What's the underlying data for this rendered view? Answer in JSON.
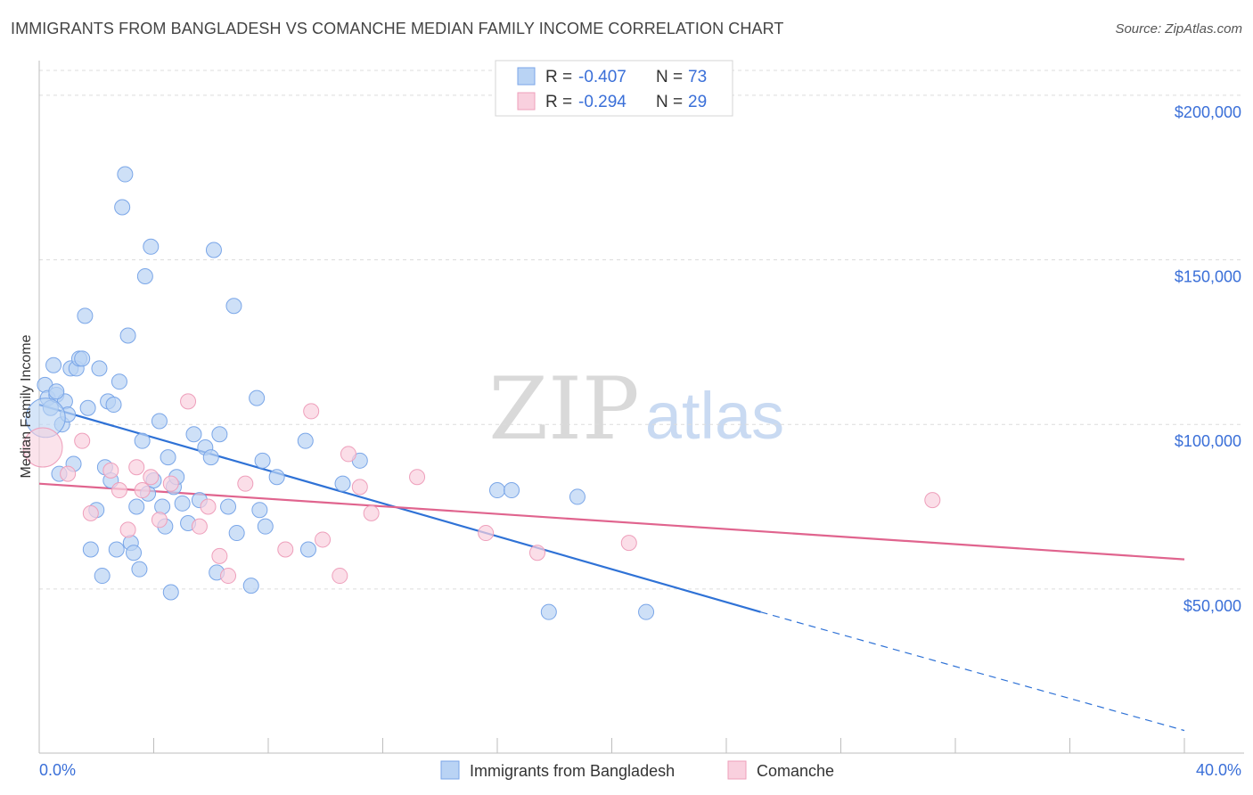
{
  "title": "IMMIGRANTS FROM BANGLADESH VS COMANCHE MEDIAN FAMILY INCOME CORRELATION CHART",
  "source": "Source: ZipAtlas.com",
  "watermark": {
    "zip": "ZIP",
    "atlas": "atlas"
  },
  "chart_data": {
    "type": "scatter",
    "ylabel": "Median Family Income",
    "xlim": [
      0,
      40
    ],
    "ylim": [
      5000,
      210000
    ],
    "x_tick_labels": [
      "0.0%",
      "40.0%"
    ],
    "y_ticks": [
      {
        "value": 50000,
        "label": "$50,000"
      },
      {
        "value": 100000,
        "label": "$100,000"
      },
      {
        "value": 150000,
        "label": "$150,000"
      },
      {
        "value": 200000,
        "label": "$200,000"
      }
    ],
    "grid": "horizontal-dashed",
    "legend": {
      "entries": [
        {
          "r_label": "R = ",
          "r_value": "-0.407",
          "n_label": "N = ",
          "n_value": "73"
        },
        {
          "r_label": "R = ",
          "r_value": "-0.294",
          "n_label": "N = ",
          "n_value": "29"
        }
      ]
    },
    "series": [
      {
        "name": "Immigrants from Bangladesh",
        "color": "#7aa6e8",
        "fill": "#b9d3f4",
        "line_color": "#2f72d6",
        "trend": {
          "x0": 0,
          "y0": 106000,
          "x1": 25.2,
          "y1": 43000,
          "dash_to_x": 40,
          "dash_to_y": 7000
        },
        "points": [
          [
            0.2,
            112000
          ],
          [
            0.3,
            108000
          ],
          [
            0.4,
            105000
          ],
          [
            0.5,
            118000
          ],
          [
            0.6,
            109000
          ],
          [
            0.7,
            85000
          ],
          [
            0.8,
            100000
          ],
          [
            0.9,
            107000
          ],
          [
            1.0,
            103000
          ],
          [
            1.1,
            117000
          ],
          [
            1.2,
            88000
          ],
          [
            1.3,
            117000
          ],
          [
            1.4,
            120000
          ],
          [
            1.5,
            120000
          ],
          [
            1.6,
            133000
          ],
          [
            1.7,
            105000
          ],
          [
            1.8,
            62000
          ],
          [
            2.0,
            74000
          ],
          [
            2.1,
            117000
          ],
          [
            2.2,
            54000
          ],
          [
            2.3,
            87000
          ],
          [
            2.4,
            107000
          ],
          [
            2.5,
            83000
          ],
          [
            2.6,
            106000
          ],
          [
            2.7,
            62000
          ],
          [
            2.8,
            113000
          ],
          [
            2.9,
            166000
          ],
          [
            3.0,
            176000
          ],
          [
            3.1,
            127000
          ],
          [
            3.2,
            64000
          ],
          [
            3.3,
            61000
          ],
          [
            3.4,
            75000
          ],
          [
            3.5,
            56000
          ],
          [
            3.6,
            95000
          ],
          [
            3.7,
            145000
          ],
          [
            3.8,
            79000
          ],
          [
            3.9,
            154000
          ],
          [
            4.0,
            83000
          ],
          [
            4.2,
            101000
          ],
          [
            4.3,
            75000
          ],
          [
            4.4,
            69000
          ],
          [
            4.5,
            90000
          ],
          [
            4.6,
            49000
          ],
          [
            4.7,
            81000
          ],
          [
            4.8,
            84000
          ],
          [
            5.0,
            76000
          ],
          [
            5.2,
            70000
          ],
          [
            5.4,
            97000
          ],
          [
            5.6,
            77000
          ],
          [
            5.8,
            93000
          ],
          [
            6.0,
            90000
          ],
          [
            6.1,
            153000
          ],
          [
            6.2,
            55000
          ],
          [
            6.3,
            97000
          ],
          [
            6.6,
            75000
          ],
          [
            6.8,
            136000
          ],
          [
            6.9,
            67000
          ],
          [
            7.4,
            51000
          ],
          [
            7.6,
            108000
          ],
          [
            7.7,
            74000
          ],
          [
            7.8,
            89000
          ],
          [
            7.9,
            69000
          ],
          [
            8.3,
            84000
          ],
          [
            9.3,
            95000
          ],
          [
            9.4,
            62000
          ],
          [
            10.6,
            82000
          ],
          [
            11.2,
            89000
          ],
          [
            16.0,
            80000
          ],
          [
            16.5,
            80000
          ],
          [
            17.8,
            43000
          ],
          [
            18.8,
            78000
          ],
          [
            21.2,
            43000
          ],
          [
            0.6,
            110000
          ]
        ],
        "big_points": [
          [
            0.1,
            102000
          ]
        ]
      },
      {
        "name": "Comanche",
        "color": "#ee9fbb",
        "fill": "#f9d0de",
        "line_color": "#e0648e",
        "trend": {
          "x0": 0,
          "y0": 82000,
          "x1": 40,
          "y1": 59000
        },
        "points": [
          [
            1.0,
            85000
          ],
          [
            1.5,
            95000
          ],
          [
            1.8,
            73000
          ],
          [
            2.5,
            86000
          ],
          [
            2.8,
            80000
          ],
          [
            3.1,
            68000
          ],
          [
            3.4,
            87000
          ],
          [
            3.6,
            80000
          ],
          [
            3.9,
            84000
          ],
          [
            4.2,
            71000
          ],
          [
            4.6,
            82000
          ],
          [
            5.2,
            107000
          ],
          [
            5.6,
            69000
          ],
          [
            5.9,
            75000
          ],
          [
            6.3,
            60000
          ],
          [
            6.6,
            54000
          ],
          [
            7.2,
            82000
          ],
          [
            8.6,
            62000
          ],
          [
            9.5,
            104000
          ],
          [
            9.9,
            65000
          ],
          [
            10.5,
            54000
          ],
          [
            10.8,
            91000
          ],
          [
            11.2,
            81000
          ],
          [
            11.6,
            73000
          ],
          [
            13.2,
            84000
          ],
          [
            15.6,
            67000
          ],
          [
            17.4,
            61000
          ],
          [
            20.6,
            64000
          ],
          [
            31.2,
            77000
          ]
        ],
        "big_points": [
          [
            0.0,
            93000
          ]
        ]
      }
    ]
  }
}
